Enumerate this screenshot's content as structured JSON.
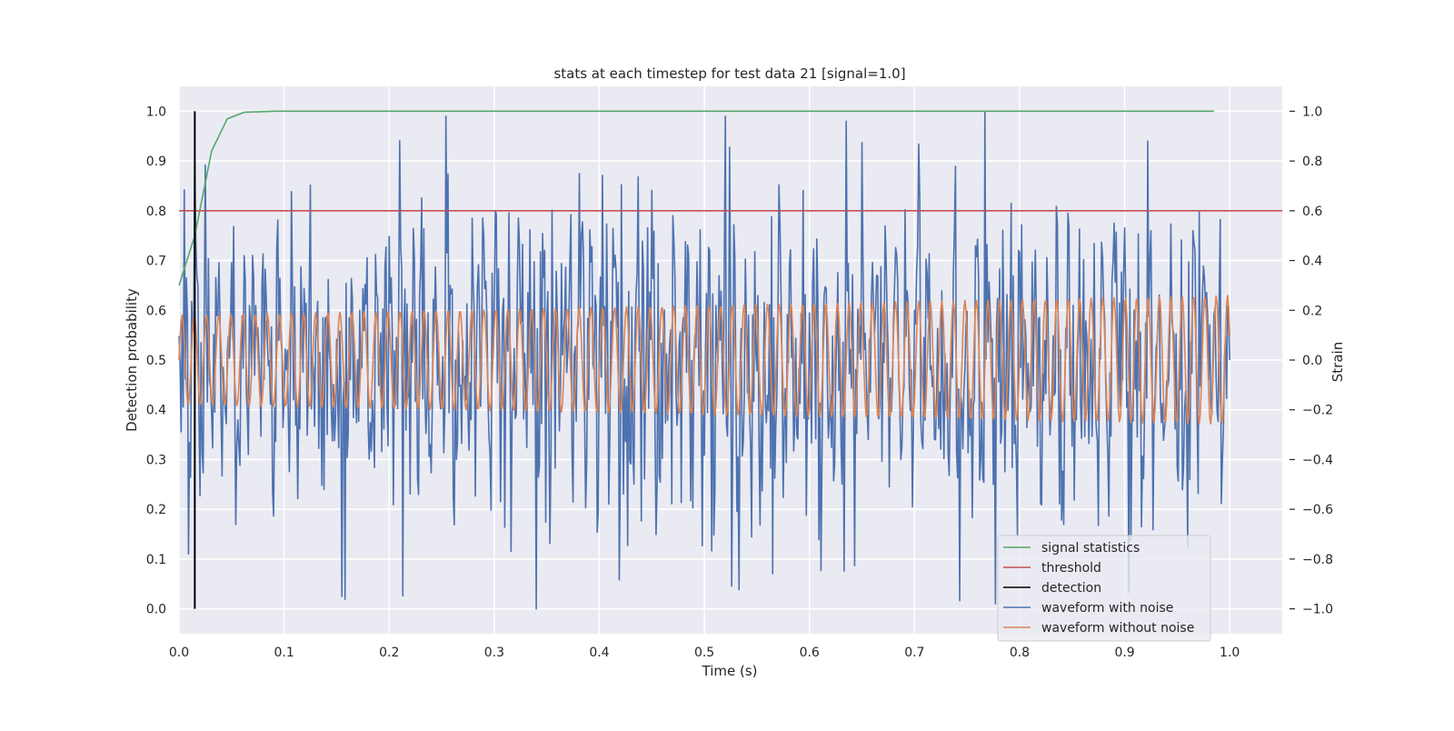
{
  "chart_data": {
    "type": "line",
    "title": "stats at each timestep for test data 21 [signal=1.0]",
    "xlabel": "Time (s)",
    "ylabel": "Detection probability",
    "y2label": "Strain",
    "xlim": [
      0.0,
      1.05
    ],
    "ylim": [
      -0.05,
      1.05
    ],
    "y2lim": [
      -1.1,
      1.1
    ],
    "x_ticks": [
      "0.0",
      "0.1",
      "0.2",
      "0.3",
      "0.4",
      "0.5",
      "0.6",
      "0.7",
      "0.8",
      "0.9",
      "1.0"
    ],
    "y_ticks": [
      "0.0",
      "0.1",
      "0.2",
      "0.3",
      "0.4",
      "0.5",
      "0.6",
      "0.7",
      "0.8",
      "0.9",
      "1.0"
    ],
    "y2_ticks": [
      "−1.0",
      "−0.8",
      "−0.6",
      "−0.4",
      "−0.2",
      "0.0",
      "0.2",
      "0.4",
      "0.6",
      "0.8",
      "1.0"
    ],
    "grid": true,
    "legend_position": "lower right",
    "series": [
      {
        "name": "signal statistics",
        "color": "#55a868",
        "axis": "left",
        "x": [
          0.0,
          0.015,
          0.031,
          0.046,
          0.062,
          0.077,
          0.092,
          0.2,
          0.4,
          0.6,
          0.8,
          0.985
        ],
        "values": [
          0.65,
          0.75,
          0.92,
          0.985,
          0.998,
          0.999,
          1.0,
          1.0,
          1.0,
          1.0,
          1.0,
          1.0
        ]
      },
      {
        "name": "threshold",
        "color": "#c44e52",
        "axis": "left",
        "x": [
          0.0,
          1.05
        ],
        "values": [
          0.8,
          0.8
        ]
      },
      {
        "name": "detection",
        "color": "#000000",
        "axis": "left",
        "x": [
          0.015,
          0.015
        ],
        "values": [
          0.0,
          1.0
        ]
      },
      {
        "name": "waveform with noise",
        "color": "#4c72b0",
        "axis": "right",
        "x_range": [
          0.0,
          1.0
        ],
        "samples": 1000,
        "peaks": [
          {
            "x": 0.155,
            "y": -0.95
          },
          {
            "x": 0.34,
            "y": -1.0
          },
          {
            "x": 0.52,
            "y": 0.98
          },
          {
            "x": 0.635,
            "y": 0.96
          },
          {
            "x": 0.767,
            "y": 1.0
          },
          {
            "x": 0.922,
            "y": 0.88
          }
        ]
      },
      {
        "name": "waveform without noise",
        "color": "#dd8452",
        "axis": "right",
        "x_range": [
          0.0,
          1.0
        ],
        "samples": 1000,
        "cycles": 86,
        "amplitude_start": 0.18,
        "amplitude_end": 0.26
      }
    ]
  }
}
